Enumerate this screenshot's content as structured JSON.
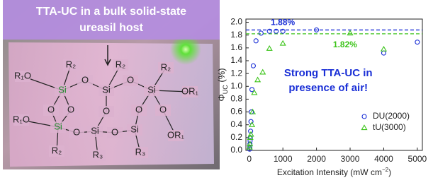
{
  "photo": {
    "banner": [
      "TTA-UC in a bulk solid-state",
      "ureasil host"
    ],
    "structure": [
      "R₁O",
      "R₂",
      "R₂",
      "R₂",
      "Si",
      "O",
      "Si",
      "O",
      "Si",
      "OR₁",
      "O",
      "O",
      "O",
      "O",
      "O",
      "R₁O",
      "Si",
      "O",
      "Si",
      "O",
      "Si",
      "OR₁",
      "R₂",
      "R₃",
      "R₃"
    ]
  },
  "chart_data": {
    "type": "scatter",
    "xlabel_parts": [
      "Excitation Intensity (mW cm",
      "−2",
      ")"
    ],
    "ylabel_parts": [
      "Φ",
      "UC",
      " (%)"
    ],
    "annotation": [
      "Strong TTA-UC in",
      "presence of air!"
    ],
    "xlim": [
      -100,
      5150
    ],
    "ylim": [
      0,
      2.05
    ],
    "xticks": [
      0,
      1000,
      2000,
      3000,
      4000,
      5000
    ],
    "yticks": [
      {
        "value": 0,
        "label": "0.0"
      },
      0.2,
      0.4,
      0.6,
      0.8,
      {
        "value": 1,
        "label": "1.0"
      },
      1.2,
      1.4,
      1.6,
      1.8,
      {
        "value": 2,
        "label": "2.0"
      }
    ],
    "reference_lines": [
      {
        "value": 1.88,
        "label": "1.88%",
        "color": "#1a2fd6"
      },
      {
        "value": 1.82,
        "label": "1.82%",
        "color": "#3cc41a"
      }
    ],
    "legend": "lower right",
    "series": [
      {
        "name": "DU(2000)",
        "color": "#1a2fd6",
        "marker": "circle",
        "x": [
          10,
          15,
          20,
          25,
          30,
          40,
          50,
          60,
          80,
          120,
          200,
          350,
          600,
          800,
          1000,
          2000,
          4000,
          5000
        ],
        "values": [
          0.02,
          0.05,
          0.1,
          0.15,
          0.2,
          0.3,
          0.45,
          0.6,
          0.95,
          1.32,
          1.71,
          1.83,
          1.86,
          1.86,
          1.86,
          1.88,
          1.52,
          1.69
        ]
      },
      {
        "name": "tU(3000)",
        "color": "#3cc41a",
        "marker": "triangle",
        "x": [
          10,
          20,
          30,
          50,
          80,
          100,
          150,
          250,
          400,
          600,
          1000,
          3000,
          4000
        ],
        "values": [
          0.05,
          0.1,
          0.2,
          0.25,
          0.4,
          0.6,
          0.9,
          1.1,
          1.22,
          1.59,
          1.67,
          1.83,
          1.58
        ]
      }
    ]
  }
}
